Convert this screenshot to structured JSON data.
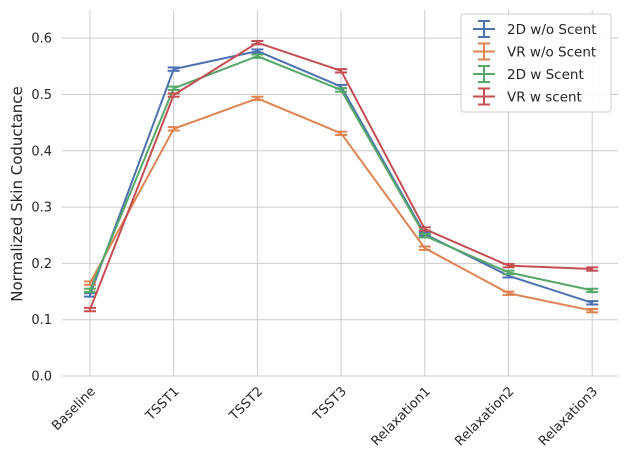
{
  "chart_data": {
    "type": "line",
    "title": "",
    "xlabel": "",
    "ylabel": "Normalized Skin Coductance",
    "categories": [
      "Baseline",
      "TSST1",
      "TSST2",
      "TSST3",
      "Relaxation1",
      "Relaxation2",
      "Relaxation3"
    ],
    "ylim": [
      0,
      0.65
    ],
    "yticks": [
      0.0,
      0.1,
      0.2,
      0.3,
      0.4,
      0.5,
      0.6
    ],
    "ytick_labels": [
      "0.0",
      "0.1",
      "0.2",
      "0.3",
      "0.4",
      "0.5",
      "0.6"
    ],
    "grid": true,
    "legend_position": "top-right",
    "error_bars": true,
    "series": [
      {
        "name": "2D w/o Scent",
        "color": "#4c72b0",
        "values": [
          0.144,
          0.545,
          0.577,
          0.514,
          0.252,
          0.178,
          0.13
        ],
        "errors": [
          0.003,
          0.003,
          0.003,
          0.003,
          0.003,
          0.003,
          0.003
        ]
      },
      {
        "name": "VR w/o Scent",
        "color": "#dd8452",
        "values": [
          0.165,
          0.439,
          0.493,
          0.431,
          0.227,
          0.147,
          0.116
        ],
        "errors": [
          0.003,
          0.003,
          0.003,
          0.003,
          0.003,
          0.003,
          0.003
        ]
      },
      {
        "name": "2D w Scent",
        "color": "#55a868",
        "values": [
          0.152,
          0.511,
          0.568,
          0.508,
          0.249,
          0.184,
          0.152
        ],
        "errors": [
          0.003,
          0.003,
          0.003,
          0.003,
          0.003,
          0.003,
          0.003
        ]
      },
      {
        "name": "VR w scent",
        "color": "#c44e52",
        "values": [
          0.118,
          0.499,
          0.592,
          0.542,
          0.261,
          0.196,
          0.19
        ],
        "errors": [
          0.003,
          0.003,
          0.003,
          0.003,
          0.003,
          0.003,
          0.003
        ]
      }
    ]
  }
}
